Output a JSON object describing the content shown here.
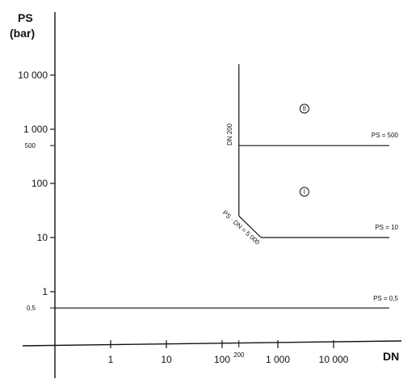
{
  "chart_data": {
    "type": "line",
    "xlabel": "DN",
    "ylabel_line1": "PS",
    "ylabel_line2": "(bar)",
    "x_scale": "log",
    "y_scale": "log",
    "x_ticks": [
      {
        "value": 1,
        "label": "1"
      },
      {
        "value": 10,
        "label": "10"
      },
      {
        "value": 100,
        "label": "100"
      },
      {
        "value": 1000,
        "label": "1 000"
      },
      {
        "value": 10000,
        "label": "10 000"
      }
    ],
    "x_extra_tick": {
      "value": 200,
      "label": "200"
    },
    "y_ticks": [
      {
        "value": 1,
        "label": "1"
      },
      {
        "value": 10,
        "label": "10"
      },
      {
        "value": 100,
        "label": "100"
      },
      {
        "value": 1000,
        "label": "1 000"
      },
      {
        "value": 10000,
        "label": "10 000"
      }
    ],
    "y_extra_ticks": [
      {
        "value": 0.5,
        "label": "0,5"
      },
      {
        "value": 500,
        "label": "500"
      }
    ],
    "lines": [
      {
        "label": "PS = 0,5",
        "points": [
          [
            0.1,
            0.5
          ],
          [
            100000,
            0.5
          ]
        ]
      },
      {
        "label": "PS = 10",
        "points": [
          [
            500,
            10
          ],
          [
            100000,
            10
          ]
        ]
      },
      {
        "label": "PS = 500",
        "points": [
          [
            200,
            500
          ],
          [
            100000,
            500
          ]
        ]
      },
      {
        "label": "DN 200",
        "points": [
          [
            200,
            500
          ],
          [
            200,
            16000
          ]
        ]
      },
      {
        "label": "PS · DN = 5 000",
        "points": [
          [
            200,
            25
          ],
          [
            500,
            10
          ]
        ]
      },
      {
        "label": "",
        "points": [
          [
            200,
            25
          ],
          [
            200,
            500
          ]
        ]
      }
    ],
    "regions": [
      {
        "label": "II",
        "x": 3000,
        "y": 2400
      },
      {
        "label": "I",
        "x": 3000,
        "y": 70
      }
    ]
  }
}
